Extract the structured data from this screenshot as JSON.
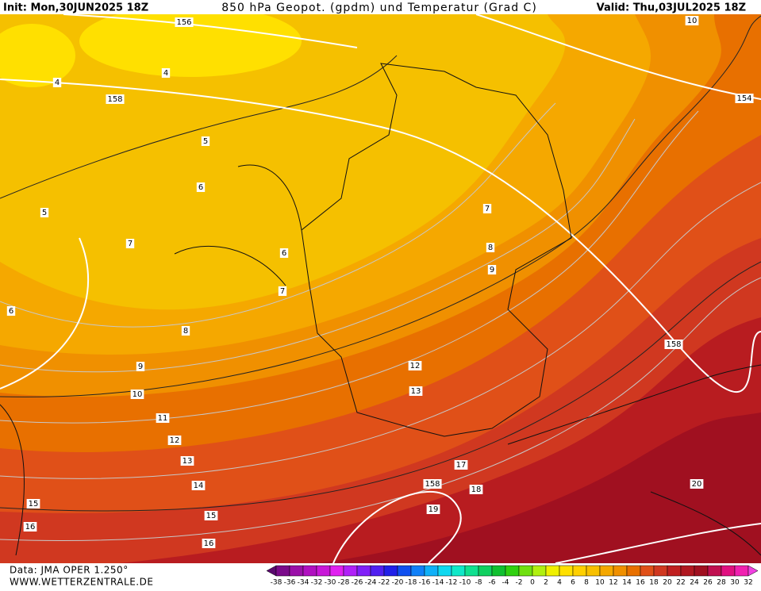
{
  "header": {
    "init": "Init: Mon,30JUN2025 18Z",
    "title": "850 hPa Geopot. (gpdm) und Temperatur (Grad C)",
    "valid": "Valid: Thu,03JUL2025 18Z"
  },
  "map": {
    "geopotential_labels": [
      156,
      158,
      154,
      158,
      158
    ],
    "temperature_labels": [
      10,
      4,
      4,
      5,
      6,
      5,
      7,
      6,
      7,
      6,
      8,
      9,
      10,
      11,
      12,
      13,
      14,
      15,
      15,
      16,
      16,
      7,
      8,
      9,
      12,
      13,
      17,
      18,
      19,
      20
    ]
  },
  "colorbar": {
    "ticks": [
      -38,
      -36,
      -34,
      -32,
      -30,
      -28,
      -26,
      -24,
      -22,
      -20,
      -18,
      -16,
      -14,
      -12,
      -10,
      -8,
      -6,
      -4,
      -2,
      0,
      2,
      4,
      6,
      8,
      10,
      12,
      14,
      16,
      18,
      20,
      22,
      24,
      26,
      28,
      30,
      32
    ],
    "colors": [
      "#5a0a6e",
      "#7a0a8a",
      "#9a10a8",
      "#b010c0",
      "#c818d8",
      "#e020f0",
      "#b020f8",
      "#8020f8",
      "#5020f0",
      "#2020e8",
      "#1050f0",
      "#1080f8",
      "#10b0f8",
      "#10d8f0",
      "#10e8c8",
      "#10e090",
      "#10d060",
      "#10c030",
      "#30d010",
      "#70e010",
      "#b0f010",
      "#f0f000",
      "#ffe000",
      "#ffd000",
      "#f8c000",
      "#f5a800",
      "#f09000",
      "#e87000",
      "#e05018",
      "#d03820",
      "#c02020",
      "#b01820",
      "#a01020",
      "#c01050",
      "#e01080",
      "#f020b0",
      "#f040e0"
    ]
  },
  "footer": {
    "source": "Data: JMA OPER 1.250°",
    "website": "WWW.WETTERZENTRALE.DE"
  }
}
